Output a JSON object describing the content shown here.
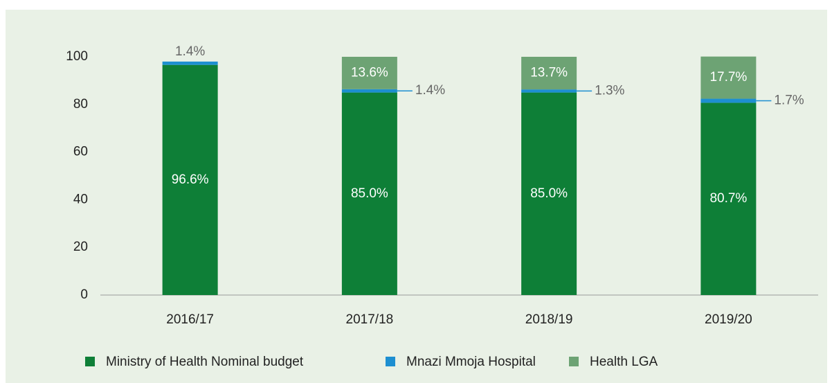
{
  "chart_data": {
    "type": "stacked_bar",
    "categories": [
      "2016/17",
      "2017/18",
      "2018/19",
      "2019/20"
    ],
    "series": [
      {
        "name": "Ministry of Health Nominal budget",
        "color": "#0e7f37",
        "values": [
          96.6,
          85.0,
          85.0,
          80.7
        ],
        "value_labels": [
          "96.6%",
          "85.0%",
          "85.0%",
          "80.7%"
        ]
      },
      {
        "name": "Mnazi Mmoja Hospital",
        "color": "#1d8fd1",
        "values": [
          1.4,
          1.4,
          1.3,
          1.7
        ],
        "value_labels": [
          "1.4%",
          "1.4%",
          "1.3%",
          "1.7%"
        ]
      },
      {
        "name": "Health LGA",
        "color": "#6da374",
        "values": [
          null,
          13.6,
          13.7,
          17.7
        ],
        "value_labels": [
          null,
          "13.6%",
          "13.7%",
          "17.7%"
        ]
      }
    ],
    "ylim": [
      0,
      100
    ],
    "yticks": [
      0,
      20,
      40,
      60,
      80,
      100
    ],
    "legend": "bottom"
  }
}
